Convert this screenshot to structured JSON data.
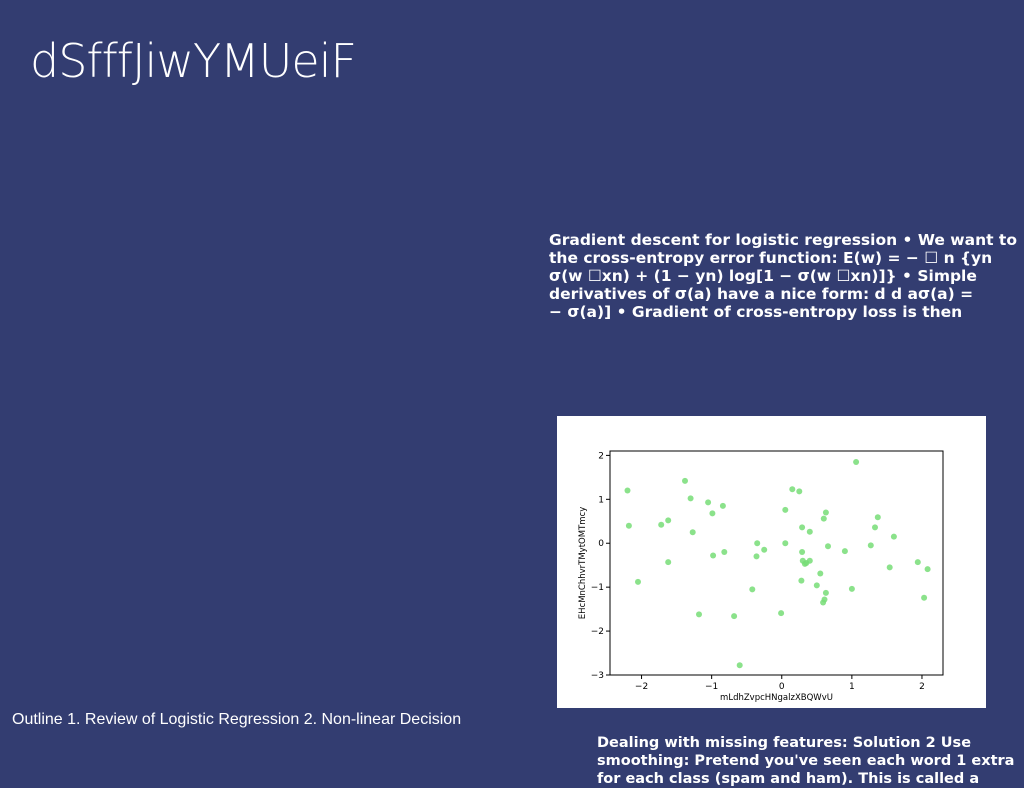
{
  "slide": {
    "title": "dSfffJiwYMUeiF"
  },
  "gradient_text": {
    "lines": [
      "Gradient descent for logistic regression • We want to",
      "the cross-entropy error function: E(w) = − ☐ n {yn",
      "σ(w ☐xn) + (1 − yn) log[1 − σ(w ☐xn)]} • Simple",
      "derivatives of σ(a) have a nice form: d d aσ(a) =",
      "− σ(a)] • Gradient of cross-entropy loss is then"
    ]
  },
  "outline_text": "Outline 1. Review of Logistic Regression 2. Non-linear Decision",
  "missing_text": {
    "lines": [
      "Dealing with missing features: Solution 2 Use",
      "smoothing: Pretend you've seen each word 1 extra",
      "for each class (spam and ham). This is called a"
    ]
  },
  "chart_data": {
    "type": "scatter",
    "title": "",
    "xlabel": "mLdhZvpcHNgalzXBQWvU",
    "ylabel": "EHcMnChhvrTMytOMTmcy",
    "xlim": [
      -2.45,
      2.3
    ],
    "ylim": [
      -3.0,
      2.1
    ],
    "xticks": [
      -2,
      -1,
      0,
      1,
      2
    ],
    "yticks": [
      2,
      1,
      0,
      -1,
      -2,
      -3
    ],
    "grid": false,
    "marker_color": "#77dd77",
    "points": [
      {
        "x": -2.2,
        "y": 1.2
      },
      {
        "x": -2.18,
        "y": 0.4
      },
      {
        "x": -2.05,
        "y": -0.88
      },
      {
        "x": -1.72,
        "y": 0.42
      },
      {
        "x": -1.62,
        "y": 0.52
      },
      {
        "x": -1.62,
        "y": -0.43
      },
      {
        "x": -1.38,
        "y": 1.42
      },
      {
        "x": -1.3,
        "y": 1.02
      },
      {
        "x": -1.27,
        "y": 0.25
      },
      {
        "x": -1.18,
        "y": -1.62
      },
      {
        "x": -1.05,
        "y": 0.93
      },
      {
        "x": -0.99,
        "y": 0.68
      },
      {
        "x": -0.98,
        "y": -0.28
      },
      {
        "x": -0.84,
        "y": 0.85
      },
      {
        "x": -0.82,
        "y": -0.2
      },
      {
        "x": -0.68,
        "y": -1.66
      },
      {
        "x": -0.6,
        "y": -2.78
      },
      {
        "x": -0.42,
        "y": -1.05
      },
      {
        "x": -0.35,
        "y": 0.0
      },
      {
        "x": -0.36,
        "y": -0.3
      },
      {
        "x": -0.25,
        "y": -0.15
      },
      {
        "x": -0.01,
        "y": -1.59
      },
      {
        "x": 0.05,
        "y": 0.76
      },
      {
        "x": 0.05,
        "y": 0.0
      },
      {
        "x": 0.15,
        "y": 1.23
      },
      {
        "x": 0.25,
        "y": 1.18
      },
      {
        "x": 0.28,
        "y": -0.85
      },
      {
        "x": 0.29,
        "y": 0.36
      },
      {
        "x": 0.29,
        "y": -0.2
      },
      {
        "x": 0.3,
        "y": -0.4
      },
      {
        "x": 0.33,
        "y": -0.47
      },
      {
        "x": 0.35,
        "y": -0.45
      },
      {
        "x": 0.4,
        "y": 0.26
      },
      {
        "x": 0.4,
        "y": -0.4
      },
      {
        "x": 0.5,
        "y": -0.96
      },
      {
        "x": 0.55,
        "y": -0.69
      },
      {
        "x": 0.6,
        "y": 0.56
      },
      {
        "x": 0.59,
        "y": -1.35
      },
      {
        "x": 0.61,
        "y": -1.28
      },
      {
        "x": 0.63,
        "y": 0.7
      },
      {
        "x": 0.63,
        "y": -1.13
      },
      {
        "x": 0.66,
        "y": -0.07
      },
      {
        "x": 0.9,
        "y": -0.18
      },
      {
        "x": 1.0,
        "y": -1.04
      },
      {
        "x": 1.06,
        "y": 1.85
      },
      {
        "x": 1.27,
        "y": -0.05
      },
      {
        "x": 1.33,
        "y": 0.36
      },
      {
        "x": 1.37,
        "y": 0.59
      },
      {
        "x": 1.54,
        "y": -0.55
      },
      {
        "x": 1.6,
        "y": 0.15
      },
      {
        "x": 1.94,
        "y": -0.43
      },
      {
        "x": 2.03,
        "y": -1.24
      },
      {
        "x": 2.08,
        "y": -0.59
      }
    ]
  }
}
